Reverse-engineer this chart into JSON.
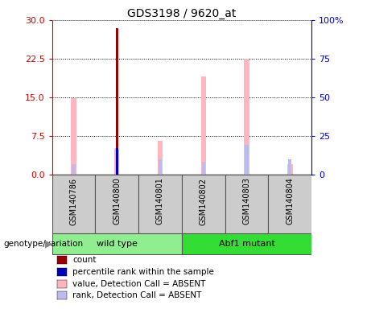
{
  "title": "GDS3198 / 9620_at",
  "samples": [
    "GSM140786",
    "GSM140800",
    "GSM140801",
    "GSM140802",
    "GSM140803",
    "GSM140804"
  ],
  "ylim_left": [
    0,
    30
  ],
  "ylim_right": [
    0,
    100
  ],
  "yticks_left": [
    0,
    7.5,
    15,
    22.5,
    30
  ],
  "yticks_right": [
    0,
    25,
    50,
    75,
    100
  ],
  "ytick_labels_right": [
    "0",
    "25",
    "50",
    "75",
    "100%"
  ],
  "pink_values": [
    14.8,
    5.0,
    6.5,
    19.0,
    22.5,
    2.0
  ],
  "rank_pct_values": [
    6.5,
    17.0,
    10.0,
    8.5,
    19.0,
    10.0
  ],
  "count_values": [
    0,
    28.5,
    0,
    0,
    0,
    0
  ],
  "blue_pct_values": [
    0,
    17.0,
    0,
    0,
    0,
    0
  ],
  "colors": {
    "count": "#990000",
    "percentile_rank": "#0000BB",
    "pink_value": "#FFB6C1",
    "light_purple": "#BBBBEE"
  },
  "legend_labels": [
    "count",
    "percentile rank within the sample",
    "value, Detection Call = ABSENT",
    "rank, Detection Call = ABSENT"
  ],
  "legend_colors": [
    "#990000",
    "#0000BB",
    "#FFB6C1",
    "#BBBBEE"
  ],
  "genotype_label": "genotype/variation",
  "left_axis_color": "#CC0000",
  "right_axis_color": "#0000CC",
  "pink_bar_width": 0.12,
  "rank_bar_width": 0.08,
  "count_bar_width": 0.06
}
